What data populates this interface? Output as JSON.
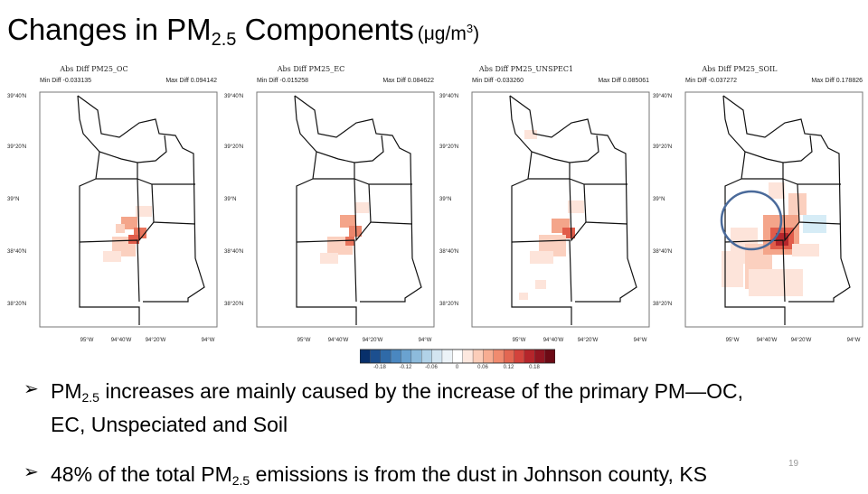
{
  "title": {
    "main": "Changes in PM",
    "sub": "2.5",
    "rest": " Components",
    "unit": "(μg/m",
    "unit_sup": "3",
    "unit_close": ")"
  },
  "panels": [
    {
      "title": "Abs Diff PM25_OC",
      "min": "Min Diff -0.033135",
      "max": "Max Diff 0.094142"
    },
    {
      "title": "Abs Diff PM25_EC",
      "min": "Min Diff -0.015258",
      "max": "Max Diff 0.084622"
    },
    {
      "title": "Abs Diff PM25_UNSPEC1",
      "min": "Min Diff -0.033260",
      "max": "Max Diff 0.085061"
    },
    {
      "title": "Abs Diff PM25_SOIL",
      "min": "Min Diff -0.037272",
      "max": "Max Diff 0.178826"
    }
  ],
  "axis": {
    "lat_labels": [
      "39°40'N",
      "39°20'N",
      "39°N",
      "38°40'N",
      "38°20'N"
    ],
    "lon_labels": [
      "95°W",
      "94°40'W",
      "94°20'W",
      "94°W"
    ]
  },
  "colorbar": {
    "tick_labels": [
      "-0.18",
      "-0.12",
      "-0.06",
      "0",
      "0.06",
      "0.12",
      "0.18"
    ],
    "colors": [
      "#08306b",
      "#1c4f8f",
      "#2f6aa8",
      "#4a87c0",
      "#6aa2d0",
      "#8dbbdc",
      "#b1d2e8",
      "#d3e5f1",
      "#ecf3f8",
      "#ffffff",
      "#fde8df",
      "#fbcdb9",
      "#f7ad92",
      "#f08b6f",
      "#e36752",
      "#d3433c",
      "#b5252b",
      "#921521",
      "#6c0a15"
    ]
  },
  "bullets": [
    {
      "pre": "PM",
      "sub": "2.5",
      "post": " increases are mainly caused by the increase of the primary PM—OC,",
      "line2": "EC, Unspeciated and Soil"
    },
    {
      "pre": "48% of the total PM",
      "sub": "2.5",
      "post": " emissions is from the dust in Johnson county, KS"
    }
  ],
  "page_number": "19",
  "highlight_color": "#4a6a9a"
}
